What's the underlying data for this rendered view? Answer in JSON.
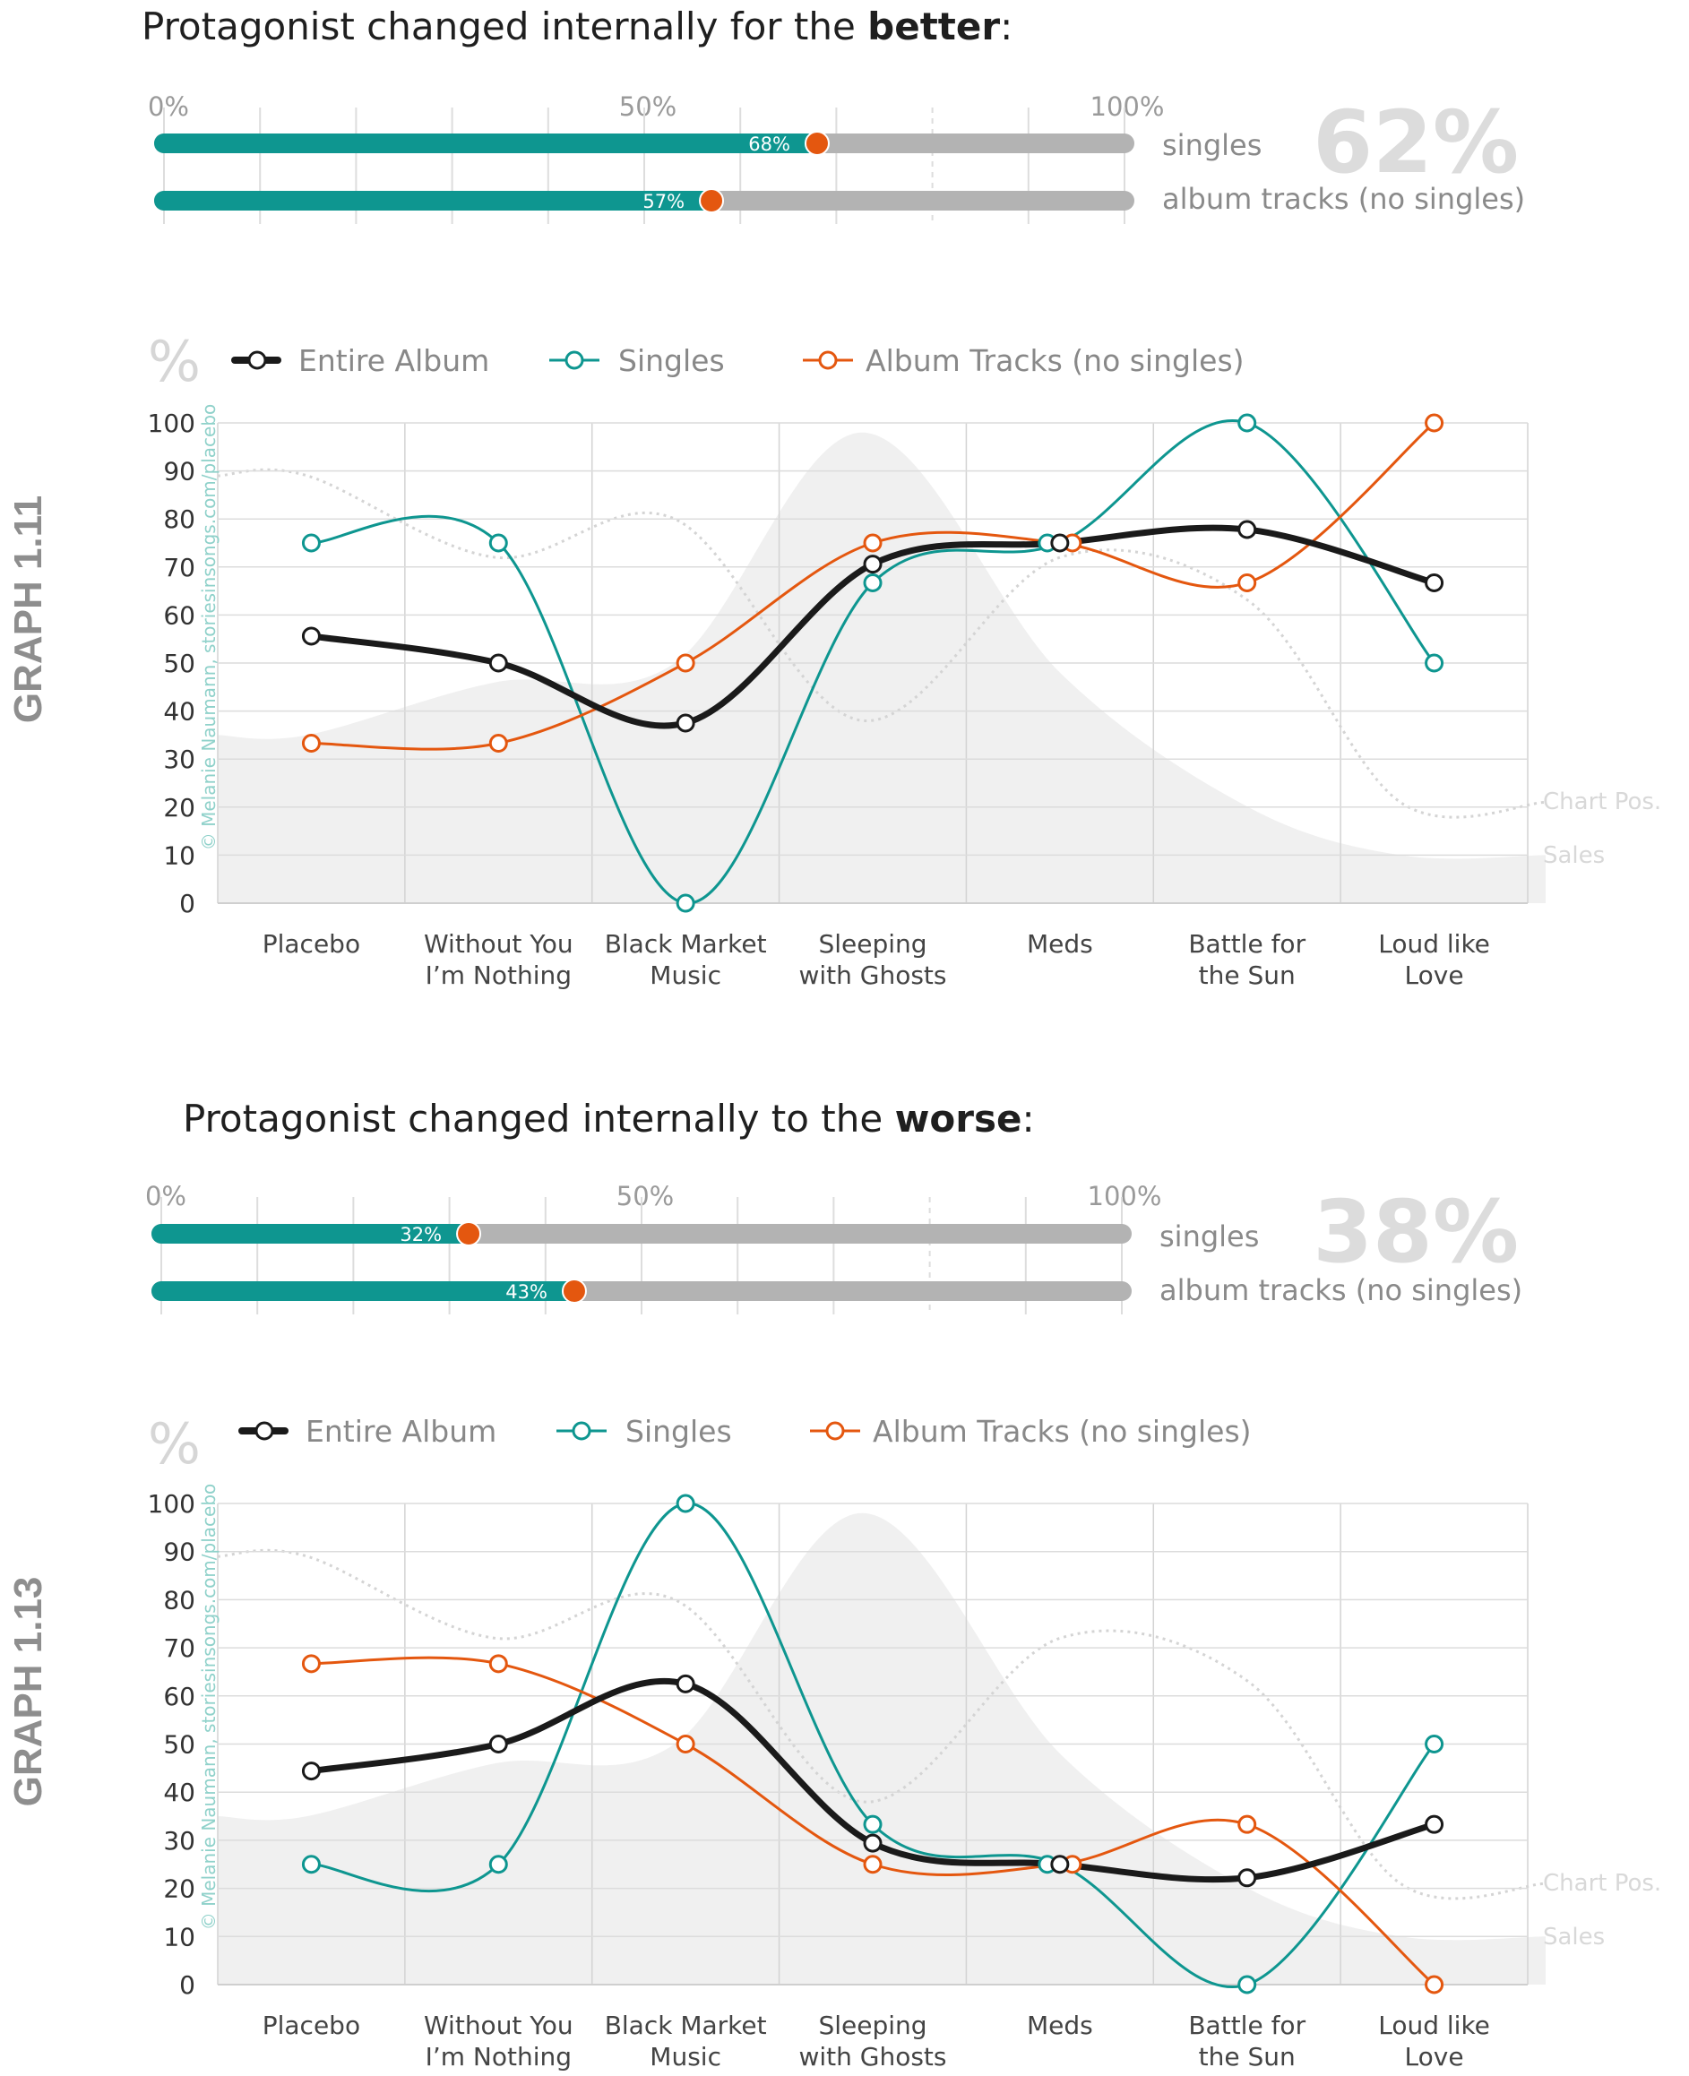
{
  "sections": [
    {
      "title_pre": "Protagonist changed internally for the ",
      "title_bold": "better",
      "title_post": ":",
      "big_percent": "62%",
      "bar_axis_labels": [
        "0%",
        "50%",
        "100%"
      ],
      "bars": [
        {
          "label": "singles",
          "value": 68,
          "value_label": "68%"
        },
        {
          "label": "album tracks (no singles)",
          "value": 57,
          "value_label": "57%"
        }
      ],
      "graph_label": "GRAPH 1.11"
    },
    {
      "title_pre": "Protagonist changed internally to the ",
      "title_bold": "worse",
      "title_post": ":",
      "big_percent": "38%",
      "bar_axis_labels": [
        "0%",
        "50%",
        "100%"
      ],
      "bars": [
        {
          "label": "singles",
          "value": 32,
          "value_label": "32%"
        },
        {
          "label": "album tracks (no singles)",
          "value": 43,
          "value_label": "43%"
        }
      ],
      "graph_label": "GRAPH 1.13"
    }
  ],
  "legend": {
    "percent_symbol": "%",
    "entire_album": "Entire Album",
    "singles": "Singles",
    "album_tracks": "Album Tracks (no singles)"
  },
  "credit": "© Melanie Naumann, storiesinsongs.com/placebo",
  "background_labels": {
    "chart_pos": "Chart Pos.",
    "sales": "Sales"
  },
  "colors": {
    "entire_album": "#1a1a1a",
    "singles": "#0e9690",
    "album_tracks": "#e4570f",
    "bar_fill": "#0e9690",
    "bar_track": "#b3b3b3"
  },
  "chart_data": [
    {
      "type": "bar",
      "title": "Protagonist changed internally for the better:",
      "categories": [
        "singles",
        "album tracks (no singles)"
      ],
      "values": [
        68,
        57
      ],
      "ylim": [
        0,
        100
      ],
      "overall": 62
    },
    {
      "type": "line",
      "ylabel": "%",
      "ylim": [
        0,
        100
      ],
      "yticks": [
        0,
        10,
        20,
        30,
        40,
        50,
        60,
        70,
        80,
        90,
        100
      ],
      "categories": [
        "Placebo",
        "Without You I’m Nothing",
        "Black Market Music",
        "Sleeping with Ghosts",
        "Meds",
        "Battle for the Sun",
        "Loud like Love"
      ],
      "series": [
        {
          "name": "Entire Album",
          "values": [
            55.6,
            50.0,
            37.5,
            70.6,
            75.0,
            77.8,
            66.7
          ]
        },
        {
          "name": "Singles",
          "values": [
            75.0,
            75.0,
            0,
            66.7,
            75.0,
            100,
            50.0
          ]
        },
        {
          "name": "Album Tracks (no singles)",
          "values": [
            33.3,
            33.3,
            50.0,
            75.0,
            75.0,
            66.7,
            100
          ]
        }
      ],
      "background": {
        "Chart Pos.": [
          89,
          89,
          72,
          80,
          38,
          72,
          63,
          21,
          21
        ],
        "Sales": [
          35,
          35,
          46,
          50,
          98,
          48,
          20,
          10,
          10
        ]
      }
    },
    {
      "type": "bar",
      "title": "Protagonist changed internally to the worse:",
      "categories": [
        "singles",
        "album tracks (no singles)"
      ],
      "values": [
        32,
        43
      ],
      "ylim": [
        0,
        100
      ],
      "overall": 38
    },
    {
      "type": "line",
      "ylabel": "%",
      "ylim": [
        0,
        100
      ],
      "yticks": [
        0,
        10,
        20,
        30,
        40,
        50,
        60,
        70,
        80,
        90,
        100
      ],
      "categories": [
        "Placebo",
        "Without You I’m Nothing",
        "Black Market Music",
        "Sleeping with Ghosts",
        "Meds",
        "Battle for the Sun",
        "Loud like Love"
      ],
      "series": [
        {
          "name": "Entire Album",
          "values": [
            44.4,
            50.0,
            62.5,
            29.4,
            25.0,
            22.2,
            33.3
          ]
        },
        {
          "name": "Singles",
          "values": [
            25.0,
            25.0,
            100,
            33.3,
            25.0,
            0,
            50.0
          ]
        },
        {
          "name": "Album Tracks (no singles)",
          "values": [
            66.7,
            66.7,
            50.0,
            25.0,
            25.0,
            33.3,
            0
          ]
        }
      ],
      "background": {
        "Chart Pos.": [
          89,
          89,
          72,
          80,
          38,
          72,
          63,
          21,
          21
        ],
        "Sales": [
          35,
          35,
          46,
          50,
          98,
          48,
          20,
          10,
          10
        ]
      }
    }
  ]
}
